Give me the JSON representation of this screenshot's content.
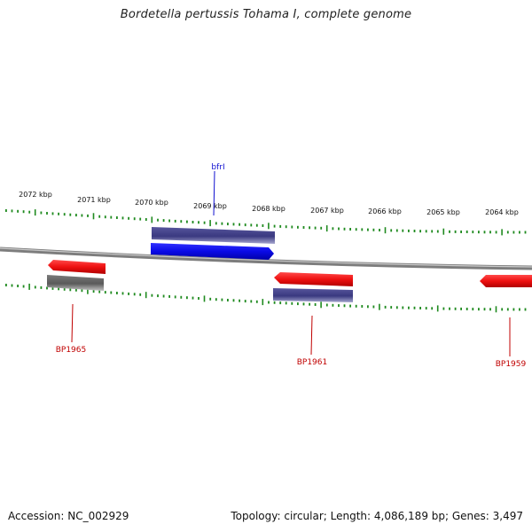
{
  "title": "Bordetella pertussis Tohama I, complete genome",
  "footer": {
    "accession": "Accession: NC_002929",
    "summary": "Topology: circular; Length: 4,086,189 bp; Genes: 3,497"
  },
  "colors": {
    "backbone": "#8c8c8c",
    "ticks": "#1f8a1f",
    "forward_gene": "#1010e0",
    "reverse_gene": "#f01010",
    "cds_block": "#3b3a80",
    "pseudo_block": "#666666",
    "forward_label": "#1010d0",
    "reverse_label": "#c00000"
  },
  "scale_labels": [
    "2072 kbp",
    "2071 kbp",
    "2070 kbp",
    "2069 kbp",
    "2068 kbp",
    "2067 kbp",
    "2066 kbp",
    "2065 kbp",
    "2064 kbp"
  ],
  "genes": [
    {
      "name": "bfrI",
      "strand": "forward"
    },
    {
      "name": "BP1965",
      "strand": "reverse"
    },
    {
      "name": "BP1961",
      "strand": "reverse"
    },
    {
      "name": "BP1959",
      "strand": "reverse"
    }
  ]
}
